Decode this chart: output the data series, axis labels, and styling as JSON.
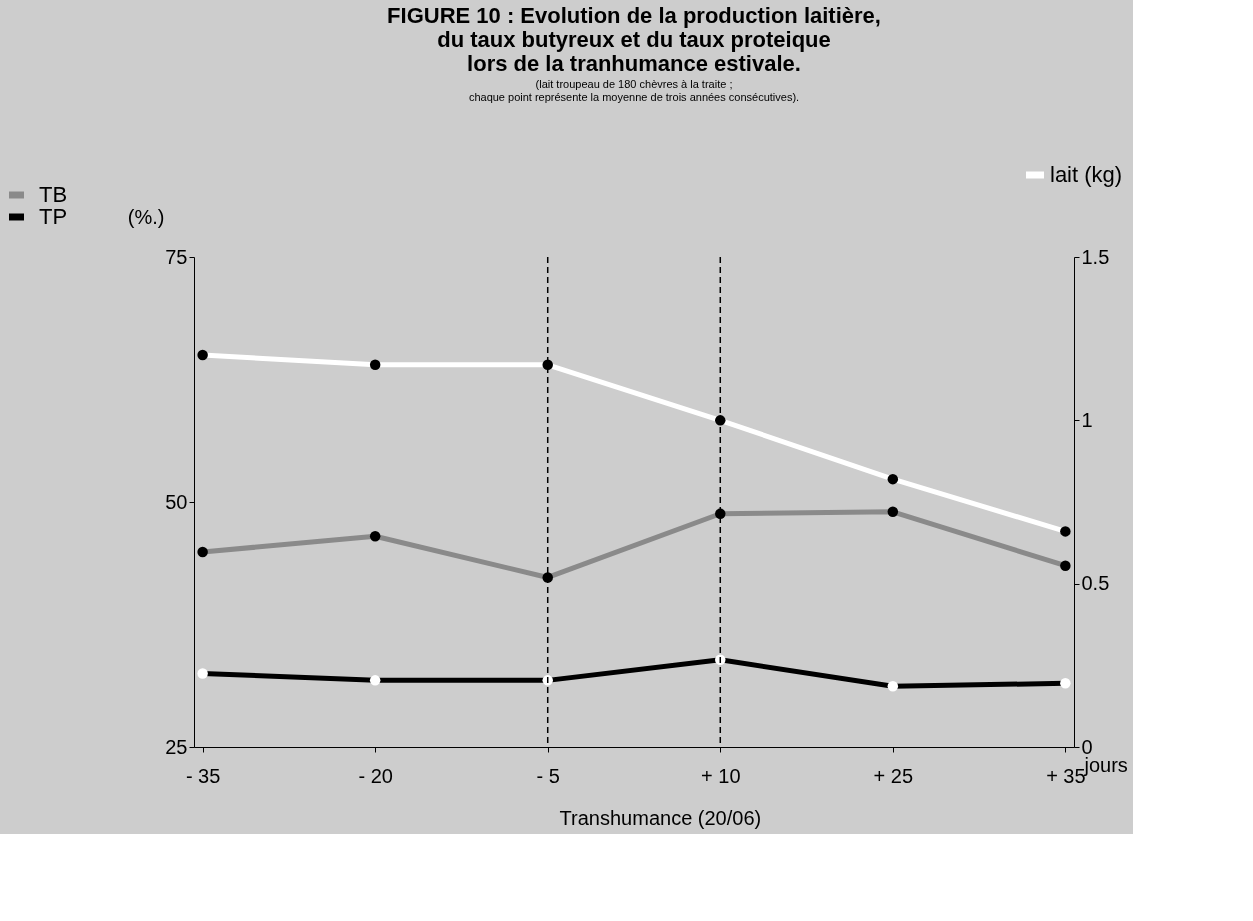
{
  "chart_data": {
    "type": "line",
    "title": [
      "FIGURE 10 : Evolution de la production laitière,",
      "du taux butyreux et du taux proteique",
      "lors de la tranhumance estivale."
    ],
    "subtitle": [
      "(lait troupeau de 180 chèvres à la traite ;",
      "chaque point représente la moyenne de trois années consécutives)."
    ],
    "categories": [
      "- 35",
      "- 20",
      "- 5",
      "+ 10",
      "+ 25",
      "+ 35"
    ],
    "xlabel": "jours",
    "ylabel": "(%.)",
    "series": [
      {
        "name": "TB",
        "color": "#8a8a8a",
        "values": [
          44.9,
          46.5,
          42.3,
          48.8,
          49.0,
          43.5
        ]
      },
      {
        "name": "TP",
        "color": "#000000",
        "values": [
          32.5,
          31.8,
          31.8,
          33.9,
          31.2,
          31.5
        ]
      },
      {
        "name": "lait (kg)",
        "color": "#ffffff",
        "axis": "y2",
        "values": [
          1.2,
          1.17,
          1.17,
          1.0,
          0.82,
          0.66
        ]
      }
    ],
    "ylim": [
      25,
      75
    ],
    "yticks": [
      25,
      50,
      75
    ],
    "y2lim": [
      0,
      1.5
    ],
    "y2ticks": [
      0,
      0.5,
      1,
      1.5
    ],
    "ref_lines": [
      {
        "axis": "x",
        "value": "- 5",
        "line_style": "dashed",
        "color": "#000000"
      },
      {
        "axis": "x",
        "value": "+ 10",
        "line_style": "dashed",
        "color": "#000000"
      }
    ],
    "annotations": [
      "Transhumance (20/06)"
    ],
    "marker": "circle",
    "line_style": "solid",
    "grid": false,
    "legend": "top"
  }
}
